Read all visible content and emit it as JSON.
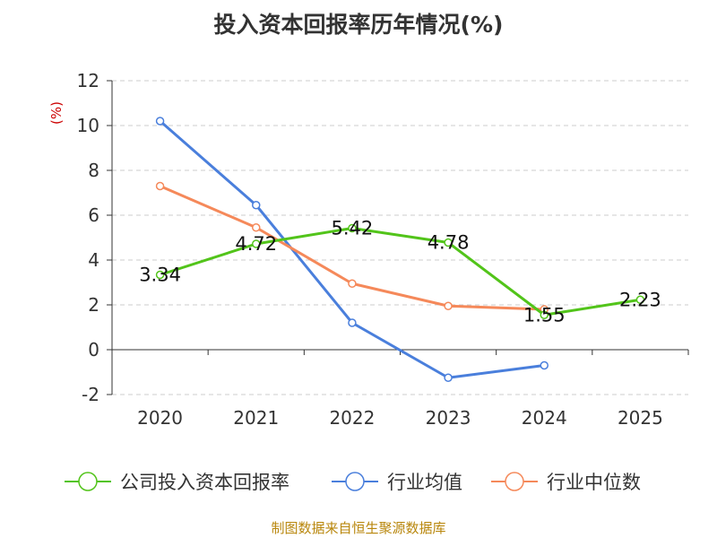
{
  "title": "投入资本回报率历年情况(%)",
  "source": "制图数据来自恒生聚源数据库",
  "chart_data": {
    "type": "line",
    "title": "投入资本回报率历年情况(%)",
    "ylabel": "(%)",
    "categories": [
      "2020",
      "2021",
      "2022",
      "2023",
      "2024",
      "2025"
    ],
    "ylim": [
      -2,
      12
    ],
    "yticks": [
      -2,
      0,
      2,
      4,
      6,
      8,
      10,
      12
    ],
    "grid": true,
    "legend": "bottom",
    "series": [
      {
        "name": "公司投入资本回报率",
        "color": "#52c41a",
        "values": [
          3.34,
          4.72,
          5.42,
          4.78,
          1.55,
          2.23
        ],
        "labels": [
          "3.34",
          "4.72",
          "5.42",
          "4.78",
          "1.55",
          "2.23"
        ]
      },
      {
        "name": "行业均值",
        "color": "#4a7fdc",
        "values": [
          10.2,
          6.45,
          1.2,
          -1.25,
          -0.7,
          null
        ]
      },
      {
        "name": "行业中位数",
        "color": "#f5895a",
        "values": [
          7.3,
          5.45,
          2.95,
          1.95,
          1.8,
          null
        ]
      }
    ]
  }
}
